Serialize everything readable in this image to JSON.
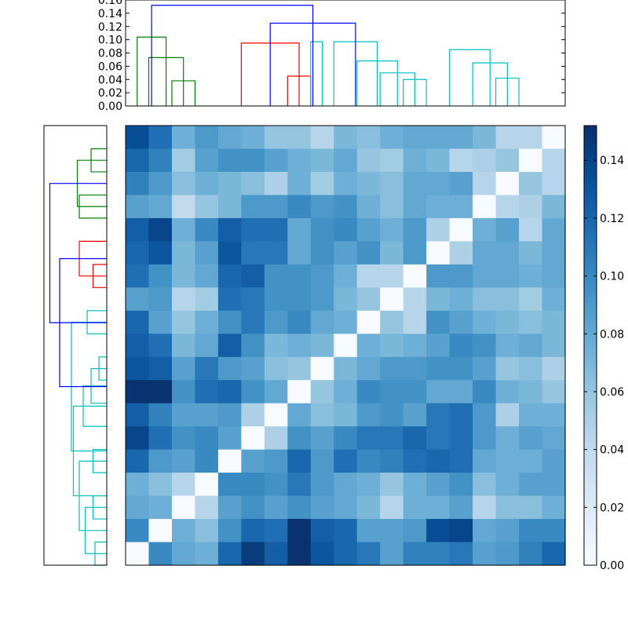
{
  "chart_data": {
    "type": "heatmap",
    "title": "",
    "n": 19,
    "matrix": [
      [
        0.135,
        0.115,
        0.075,
        0.09,
        0.08,
        0.075,
        0.06,
        0.06,
        0.045,
        0.07,
        0.065,
        0.075,
        0.08,
        0.08,
        0.08,
        0.07,
        0.045,
        0.045,
        0.0
      ],
      [
        0.12,
        0.105,
        0.055,
        0.085,
        0.095,
        0.095,
        0.085,
        0.075,
        0.07,
        0.08,
        0.06,
        0.055,
        0.075,
        0.07,
        0.045,
        0.05,
        0.06,
        0.0,
        0.045
      ],
      [
        0.105,
        0.09,
        0.065,
        0.075,
        0.07,
        0.065,
        0.05,
        0.075,
        0.055,
        0.075,
        0.07,
        0.065,
        0.08,
        0.08,
        0.085,
        0.045,
        0.0,
        0.06,
        0.045
      ],
      [
        0.085,
        0.08,
        0.04,
        0.06,
        0.07,
        0.09,
        0.09,
        0.1,
        0.09,
        0.095,
        0.075,
        0.065,
        0.08,
        0.075,
        0.075,
        0.0,
        0.045,
        0.05,
        0.07
      ],
      [
        0.125,
        0.14,
        0.075,
        0.1,
        0.125,
        0.115,
        0.115,
        0.08,
        0.095,
        0.1,
        0.085,
        0.075,
        0.09,
        0.05,
        0.0,
        0.075,
        0.085,
        0.045,
        0.08
      ],
      [
        0.12,
        0.13,
        0.07,
        0.085,
        0.13,
        0.11,
        0.11,
        0.08,
        0.095,
        0.085,
        0.095,
        0.07,
        0.09,
        0.0,
        0.05,
        0.08,
        0.08,
        0.07,
        0.08
      ],
      [
        0.115,
        0.095,
        0.07,
        0.08,
        0.12,
        0.125,
        0.095,
        0.095,
        0.09,
        0.075,
        0.045,
        0.045,
        0.0,
        0.09,
        0.09,
        0.08,
        0.08,
        0.075,
        0.08
      ],
      [
        0.085,
        0.09,
        0.045,
        0.055,
        0.115,
        0.11,
        0.095,
        0.095,
        0.09,
        0.07,
        0.06,
        0.0,
        0.045,
        0.07,
        0.075,
        0.065,
        0.065,
        0.055,
        0.075
      ],
      [
        0.12,
        0.085,
        0.06,
        0.075,
        0.095,
        0.11,
        0.09,
        0.1,
        0.08,
        0.075,
        0.0,
        0.06,
        0.045,
        0.095,
        0.085,
        0.075,
        0.07,
        0.065,
        0.07
      ],
      [
        0.125,
        0.115,
        0.07,
        0.08,
        0.125,
        0.095,
        0.07,
        0.075,
        0.07,
        0.0,
        0.075,
        0.07,
        0.075,
        0.085,
        0.1,
        0.095,
        0.075,
        0.08,
        0.07
      ],
      [
        0.13,
        0.125,
        0.085,
        0.11,
        0.09,
        0.085,
        0.065,
        0.06,
        0.0,
        0.07,
        0.08,
        0.09,
        0.09,
        0.095,
        0.095,
        0.085,
        0.06,
        0.065,
        0.05
      ],
      [
        0.15,
        0.15,
        0.095,
        0.115,
        0.12,
        0.095,
        0.08,
        0.0,
        0.06,
        0.075,
        0.1,
        0.095,
        0.095,
        0.08,
        0.08,
        0.1,
        0.075,
        0.07,
        0.06
      ],
      [
        0.125,
        0.105,
        0.085,
        0.085,
        0.09,
        0.05,
        0.0,
        0.08,
        0.065,
        0.07,
        0.09,
        0.095,
        0.085,
        0.11,
        0.115,
        0.09,
        0.05,
        0.075,
        0.075
      ],
      [
        0.14,
        0.115,
        0.095,
        0.1,
        0.085,
        0.0,
        0.05,
        0.095,
        0.085,
        0.1,
        0.11,
        0.11,
        0.12,
        0.11,
        0.115,
        0.09,
        0.075,
        0.085,
        0.08
      ],
      [
        0.12,
        0.09,
        0.085,
        0.1,
        0.0,
        0.085,
        0.09,
        0.12,
        0.09,
        0.115,
        0.1,
        0.105,
        0.115,
        0.12,
        0.115,
        0.08,
        0.075,
        0.075,
        0.085
      ],
      [
        0.075,
        0.065,
        0.045,
        0.0,
        0.1,
        0.1,
        0.095,
        0.11,
        0.09,
        0.08,
        0.075,
        0.06,
        0.075,
        0.085,
        0.095,
        0.065,
        0.075,
        0.085,
        0.085
      ],
      [
        0.08,
        0.075,
        0.0,
        0.045,
        0.085,
        0.095,
        0.085,
        0.095,
        0.085,
        0.08,
        0.07,
        0.045,
        0.075,
        0.075,
        0.085,
        0.045,
        0.065,
        0.065,
        0.075
      ],
      [
        0.1,
        0.0,
        0.075,
        0.065,
        0.095,
        0.12,
        0.115,
        0.15,
        0.125,
        0.12,
        0.085,
        0.085,
        0.09,
        0.135,
        0.14,
        0.08,
        0.085,
        0.1,
        0.1
      ],
      [
        0.0,
        0.1,
        0.08,
        0.075,
        0.12,
        0.145,
        0.125,
        0.15,
        0.13,
        0.12,
        0.11,
        0.085,
        0.105,
        0.105,
        0.11,
        0.085,
        0.09,
        0.105,
        0.12
      ]
    ],
    "top_dendrogram": {
      "ylim": [
        0,
        0.16
      ],
      "yticks": [
        "0.00",
        "0.02",
        "0.04",
        "0.06",
        "0.08",
        "0.10",
        "0.12",
        "0.14",
        "0.16"
      ],
      "links": [
        {
          "a": 15,
          "b": 25,
          "h": 0.038,
          "color": "#008000"
        },
        {
          "a": 5,
          "b": 20,
          "h": 0.073,
          "color": "#008000"
        },
        {
          "a": 65,
          "b": 75,
          "h": 0.045,
          "color": "#ff0000"
        },
        {
          "a": 45,
          "b": 70,
          "h": 0.095,
          "color": "#ff0000"
        },
        {
          "a": 115,
          "b": 125,
          "h": 0.04,
          "color": "#00bfbf"
        },
        {
          "a": 105,
          "b": 120,
          "h": 0.05,
          "color": "#00bfbf"
        },
        {
          "a": 95,
          "b": 112.5,
          "h": 0.068,
          "color": "#00bfbf"
        },
        {
          "a": 155,
          "b": 165,
          "h": 0.042,
          "color": "#00bfbf"
        },
        {
          "a": 145,
          "b": 160,
          "h": 0.065,
          "color": "#00bfbf"
        },
        {
          "a": 135,
          "b": 152.5,
          "h": 0.085,
          "color": "#00bfbf"
        },
        {
          "a": 85,
          "b": 103.75,
          "h": 0.097,
          "color": "#00bfbf"
        },
        {
          "a": 75,
          "b": 80,
          "h": 0.097,
          "color": "#00bfbf"
        },
        {
          "a": 0,
          "b": 12.5,
          "h": 0.104,
          "color": "#008000"
        },
        {
          "a": 57.5,
          "b": 94.375,
          "h": 0.125,
          "color": "#0000ff"
        },
        {
          "a": 6.25,
          "b": 75.9375,
          "h": 0.152,
          "color": "#0000ff"
        }
      ]
    },
    "left_dendrogram": {
      "xlim": [
        0,
        0.16
      ],
      "links": [
        {
          "a": 5,
          "b": 15,
          "h": 0.04,
          "color": "#008000"
        },
        {
          "a": 25,
          "b": 35,
          "h": 0.07,
          "color": "#008000"
        },
        {
          "a": 10,
          "b": 30,
          "h": 0.075,
          "color": "#008000"
        },
        {
          "a": 55,
          "b": 65,
          "h": 0.035,
          "color": "#ff0000"
        },
        {
          "a": 45,
          "b": 60,
          "h": 0.07,
          "color": "#ff0000"
        },
        {
          "a": 75,
          "b": 85,
          "h": 0.05,
          "color": "#00bfbf"
        },
        {
          "a": 95,
          "b": 105,
          "h": 0.02,
          "color": "#00bfbf"
        },
        {
          "a": 100,
          "b": 115,
          "h": 0.04,
          "color": "#00bfbf"
        },
        {
          "a": 107.5,
          "b": 125,
          "h": 0.06,
          "color": "#00bfbf"
        },
        {
          "a": 135,
          "b": 145,
          "h": 0.035,
          "color": "#00bfbf"
        },
        {
          "a": 155,
          "b": 165,
          "h": 0.035,
          "color": "#00bfbf"
        },
        {
          "a": 175,
          "b": 185,
          "h": 0.03,
          "color": "#00bfbf"
        },
        {
          "a": 160,
          "b": 180,
          "h": 0.055,
          "color": "#00bfbf"
        },
        {
          "a": 140,
          "b": 170,
          "h": 0.07,
          "color": "#00bfbf"
        },
        {
          "a": 116.25,
          "b": 155,
          "h": 0.085,
          "color": "#00bfbf"
        },
        {
          "a": 80,
          "b": 135.625,
          "h": 0.09,
          "color": "#00bfbf"
        },
        {
          "a": 52.5,
          "b": 107.8125,
          "h": 0.12,
          "color": "#0000ff"
        },
        {
          "a": 20,
          "b": 80.15625,
          "h": 0.145,
          "color": "#0000ff"
        }
      ]
    },
    "colorbar": {
      "vmin": 0.0,
      "vmax": 0.152,
      "ticks": [
        0.0,
        0.02,
        0.04,
        0.06,
        0.08,
        0.1,
        0.12,
        0.14
      ],
      "tick_labels": [
        "0.00",
        "0.02",
        "0.04",
        "0.06",
        "0.08",
        "0.10",
        "0.12",
        "0.14"
      ],
      "colormap": "Blues"
    }
  }
}
